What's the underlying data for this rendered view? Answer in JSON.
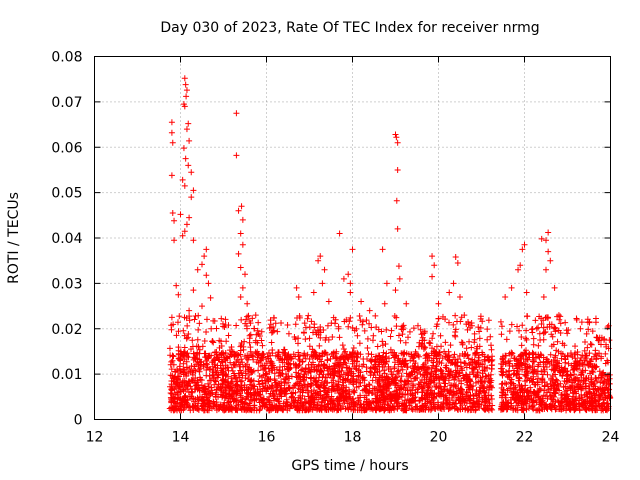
{
  "chart_data": {
    "type": "scatter",
    "title": "Day 030 of 2023, Rate Of TEC Index for receiver nrmg",
    "xlabel": "GPS time / hours",
    "ylabel": "ROTI / TECUs",
    "xlim": [
      12,
      24
    ],
    "ylim": [
      0,
      0.08
    ],
    "x_ticks": [
      "12",
      "14",
      "16",
      "18",
      "20",
      "22",
      "24"
    ],
    "y_ticks": [
      "0",
      "0.01",
      "0.02",
      "0.03",
      "0.04",
      "0.05",
      "0.06",
      "0.07",
      "0.08"
    ],
    "grid": true,
    "marker": "+",
    "color": "#ff0000",
    "series": [
      {
        "name": "ROTI",
        "coverage_hours": [
          [
            13.75,
            21.25
          ],
          [
            21.45,
            24.0
          ]
        ],
        "typical_range": [
          0.002,
          0.015
        ],
        "points": [
          [
            13.8,
            0.0655
          ],
          [
            13.8,
            0.0632
          ],
          [
            13.82,
            0.061
          ],
          [
            13.8,
            0.0538
          ],
          [
            13.82,
            0.0455
          ],
          [
            13.85,
            0.0438
          ],
          [
            13.85,
            0.0395
          ],
          [
            14.1,
            0.0752
          ],
          [
            14.12,
            0.0738
          ],
          [
            14.15,
            0.0726
          ],
          [
            14.13,
            0.0712
          ],
          [
            14.08,
            0.0695
          ],
          [
            14.1,
            0.069
          ],
          [
            14.18,
            0.0652
          ],
          [
            14.15,
            0.064
          ],
          [
            14.2,
            0.0614
          ],
          [
            14.08,
            0.0598
          ],
          [
            14.12,
            0.0575
          ],
          [
            14.18,
            0.056
          ],
          [
            14.25,
            0.0545
          ],
          [
            14.05,
            0.0528
          ],
          [
            14.1,
            0.0515
          ],
          [
            14.3,
            0.0505
          ],
          [
            14.25,
            0.049
          ],
          [
            14.0,
            0.0452
          ],
          [
            14.2,
            0.0445
          ],
          [
            14.15,
            0.043
          ],
          [
            14.1,
            0.0415
          ],
          [
            14.05,
            0.0405
          ],
          [
            14.3,
            0.0395
          ],
          [
            14.6,
            0.0375
          ],
          [
            14.55,
            0.036
          ],
          [
            14.5,
            0.0342
          ],
          [
            14.4,
            0.033
          ],
          [
            14.6,
            0.0318
          ],
          [
            14.65,
            0.03
          ],
          [
            14.3,
            0.0285
          ],
          [
            13.9,
            0.0295
          ],
          [
            13.95,
            0.0275
          ],
          [
            14.7,
            0.0268
          ],
          [
            14.5,
            0.025
          ],
          [
            14.2,
            0.024
          ],
          [
            14.35,
            0.0228
          ],
          [
            15.3,
            0.0675
          ],
          [
            15.3,
            0.0582
          ],
          [
            15.42,
            0.047
          ],
          [
            15.35,
            0.046
          ],
          [
            15.45,
            0.044
          ],
          [
            15.4,
            0.041
          ],
          [
            15.45,
            0.0385
          ],
          [
            15.35,
            0.0365
          ],
          [
            15.4,
            0.0335
          ],
          [
            15.5,
            0.032
          ],
          [
            15.45,
            0.029
          ],
          [
            15.4,
            0.027
          ],
          [
            15.55,
            0.0255
          ],
          [
            15.75,
            0.023
          ],
          [
            16.1,
            0.021
          ],
          [
            16.7,
            0.029
          ],
          [
            16.75,
            0.027
          ],
          [
            17.1,
            0.028
          ],
          [
            17.2,
            0.035
          ],
          [
            17.25,
            0.036
          ],
          [
            17.35,
            0.033
          ],
          [
            17.3,
            0.03
          ],
          [
            17.45,
            0.026
          ],
          [
            17.7,
            0.041
          ],
          [
            17.8,
            0.031
          ],
          [
            17.9,
            0.032
          ],
          [
            17.95,
            0.03
          ],
          [
            18.0,
            0.0375
          ],
          [
            17.95,
            0.028
          ],
          [
            18.2,
            0.026
          ],
          [
            18.4,
            0.024
          ],
          [
            18.7,
            0.0375
          ],
          [
            18.8,
            0.03
          ],
          [
            18.75,
            0.0255
          ],
          [
            19.0,
            0.0628
          ],
          [
            19.02,
            0.0622
          ],
          [
            19.05,
            0.061
          ],
          [
            19.05,
            0.055
          ],
          [
            19.03,
            0.0482
          ],
          [
            19.05,
            0.042
          ],
          [
            19.08,
            0.0338
          ],
          [
            19.1,
            0.031
          ],
          [
            19.0,
            0.0285
          ],
          [
            19.25,
            0.0255
          ],
          [
            19.85,
            0.036
          ],
          [
            19.9,
            0.034
          ],
          [
            19.85,
            0.0315
          ],
          [
            20.0,
            0.0255
          ],
          [
            20.25,
            0.028
          ],
          [
            20.4,
            0.0358
          ],
          [
            20.45,
            0.0345
          ],
          [
            20.35,
            0.03
          ],
          [
            20.5,
            0.027
          ],
          [
            20.6,
            0.023
          ],
          [
            20.7,
            0.021
          ],
          [
            21.55,
            0.027
          ],
          [
            21.7,
            0.029
          ],
          [
            21.85,
            0.033
          ],
          [
            21.95,
            0.0375
          ],
          [
            22.0,
            0.0385
          ],
          [
            21.9,
            0.034
          ],
          [
            22.05,
            0.028
          ],
          [
            22.4,
            0.0398
          ],
          [
            22.55,
            0.0412
          ],
          [
            22.5,
            0.0395
          ],
          [
            22.55,
            0.037
          ],
          [
            22.6,
            0.035
          ],
          [
            22.5,
            0.033
          ],
          [
            22.7,
            0.029
          ],
          [
            22.45,
            0.027
          ],
          [
            22.8,
            0.023
          ],
          [
            23.3,
            0.02
          ],
          [
            23.7,
            0.018
          ],
          [
            23.85,
            0.0175
          ],
          [
            23.9,
            0.016
          ]
        ]
      }
    ]
  }
}
